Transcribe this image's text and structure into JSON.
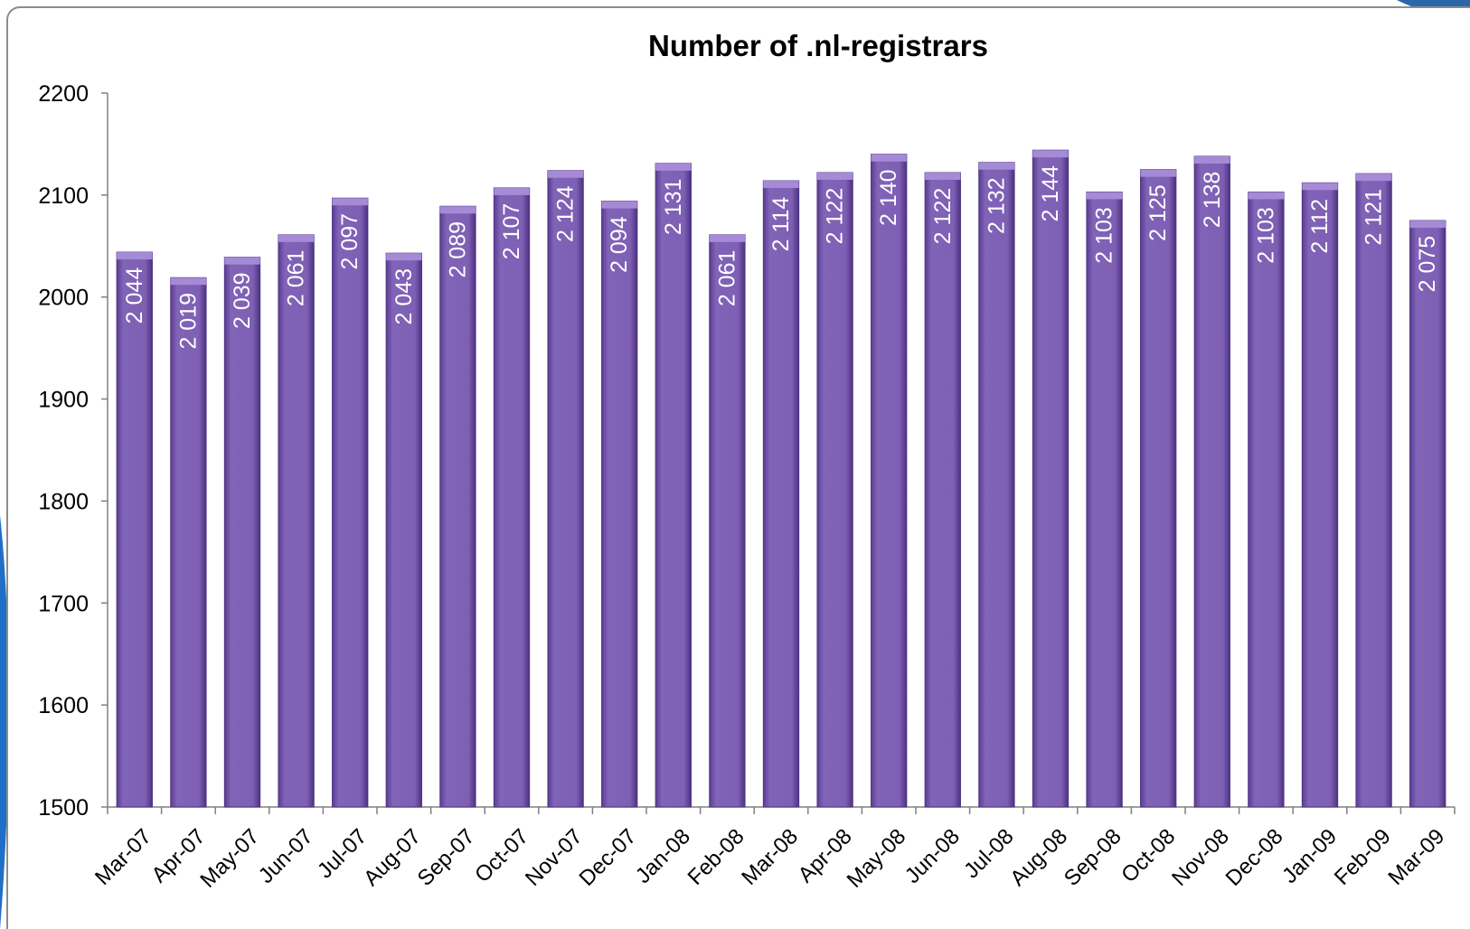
{
  "theme": {
    "bar_fill": "#7e5fb4",
    "bar_top": "#a58ad6",
    "bar_edge": "#4f3585",
    "label_color": "#ffffff",
    "axis_color": "#808080",
    "frame_color": "#8c8c8c",
    "decor_color": "#1f6fc8"
  },
  "chart_data": {
    "type": "bar",
    "title": "Number of .nl-registrars",
    "xlabel": "",
    "ylabel": "",
    "ylim": [
      1500,
      2200
    ],
    "yticks": [
      "1500",
      "1600",
      "1700",
      "1800",
      "1900",
      "2000",
      "2100",
      "2200"
    ],
    "grid": false,
    "legend": "none",
    "categories": [
      "Mar-07",
      "Apr-07",
      "May-07",
      "Jun-07",
      "Jul-07",
      "Aug-07",
      "Sep-07",
      "Oct-07",
      "Nov-07",
      "Dec-07",
      "Jan-08",
      "Feb-08",
      "Mar-08",
      "Apr-08",
      "May-08",
      "Jun-08",
      "Jul-08",
      "Aug-08",
      "Sep-08",
      "Oct-08",
      "Nov-08",
      "Dec-08",
      "Jan-09",
      "Feb-09",
      "Mar-09"
    ],
    "values": [
      2044,
      2019,
      2039,
      2061,
      2097,
      2043,
      2089,
      2107,
      2124,
      2094,
      2131,
      2061,
      2114,
      2122,
      2140,
      2122,
      2132,
      2144,
      2103,
      2125,
      2138,
      2103,
      2112,
      2121,
      2075
    ],
    "value_labels": [
      "2 044",
      "2 019",
      "2 039",
      "2 061",
      "2 097",
      "2 043",
      "2 089",
      "2 107",
      "2 124",
      "2 094",
      "2 131",
      "2 061",
      "2 114",
      "2 122",
      "2 140",
      "2 122",
      "2 132",
      "2 144",
      "2 103",
      "2 125",
      "2 138",
      "2 103",
      "2 112",
      "2 121",
      "2 075"
    ]
  }
}
